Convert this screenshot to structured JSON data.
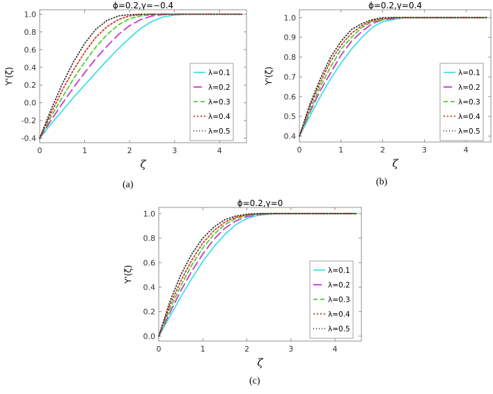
{
  "colors": {
    "l1": "#40e0e0",
    "l2": "#cc33cc",
    "l3": "#4ccc33",
    "l4": "#cc3322",
    "l5": "#333333"
  },
  "chart_data": [
    {
      "type": "line",
      "panel": "a",
      "title": "ϕ=0.2,γ=−0.4",
      "caption": "(a)",
      "xlabel": "ζ",
      "ylabel": "Y'(ζ)",
      "xlim": [
        0,
        4.6
      ],
      "ylim": [
        -0.45,
        1.05
      ],
      "xticks": [
        "0",
        "1",
        "2",
        "3",
        "4"
      ],
      "yticks": [
        "-0.4",
        "-0.2",
        "0.0",
        "0.2",
        "0.4",
        "0.6",
        "0.8",
        "1.0"
      ],
      "legend_position": "right",
      "x": [
        0,
        0.25,
        0.5,
        0.75,
        1,
        1.25,
        1.5,
        1.75,
        2,
        2.25,
        2.5,
        2.75,
        3,
        3.25,
        3.5,
        3.75,
        4,
        4.25,
        4.5
      ],
      "series": [
        {
          "name": "λ=0.1",
          "style": "solid",
          "values": [
            -0.4,
            -0.24,
            -0.09,
            0.06,
            0.2,
            0.34,
            0.48,
            0.61,
            0.73,
            0.84,
            0.92,
            0.97,
            0.99,
            1.0,
            1.0,
            1.0,
            1.0,
            1.0,
            1.0
          ]
        },
        {
          "name": "λ=0.2",
          "style": "dashlong",
          "values": [
            -0.4,
            -0.2,
            -0.01,
            0.17,
            0.34,
            0.5,
            0.64,
            0.77,
            0.87,
            0.94,
            0.98,
            0.995,
            1.0,
            1.0,
            1.0,
            1.0,
            1.0,
            1.0,
            1.0
          ]
        },
        {
          "name": "λ=0.3",
          "style": "dash",
          "values": [
            -0.4,
            -0.16,
            0.06,
            0.27,
            0.46,
            0.63,
            0.77,
            0.88,
            0.95,
            0.98,
            0.995,
            1.0,
            1.0,
            1.0,
            1.0,
            1.0,
            1.0,
            1.0,
            1.0
          ]
        },
        {
          "name": "λ=0.4",
          "style": "dotdash",
          "values": [
            -0.4,
            -0.12,
            0.14,
            0.37,
            0.57,
            0.74,
            0.86,
            0.94,
            0.98,
            0.995,
            1.0,
            1.0,
            1.0,
            1.0,
            1.0,
            1.0,
            1.0,
            1.0,
            1.0
          ]
        },
        {
          "name": "λ=0.5",
          "style": "dot",
          "values": [
            -0.4,
            -0.08,
            0.21,
            0.46,
            0.67,
            0.83,
            0.93,
            0.98,
            0.995,
            1.0,
            1.0,
            1.0,
            1.0,
            1.0,
            1.0,
            1.0,
            1.0,
            1.0,
            1.0
          ]
        }
      ]
    },
    {
      "type": "line",
      "panel": "b",
      "title": "ϕ=0.2,γ=0.4",
      "caption": "(b)",
      "xlabel": "ζ",
      "ylabel": "Y'(ζ)",
      "xlim": [
        0,
        4.6
      ],
      "ylim": [
        0.37,
        1.04
      ],
      "xticks": [
        "0",
        "1",
        "2",
        "3",
        "4"
      ],
      "yticks": [
        "0.4",
        "0.5",
        "0.6",
        "0.7",
        "0.8",
        "0.9",
        "1.0"
      ],
      "legend_position": "right",
      "x": [
        0,
        0.25,
        0.5,
        0.75,
        1,
        1.25,
        1.5,
        1.75,
        2,
        2.25,
        2.5,
        2.75,
        3,
        3.25,
        3.5,
        3.75,
        4,
        4.25,
        4.5
      ],
      "series": [
        {
          "name": "λ=0.1",
          "style": "solid",
          "values": [
            0.4,
            0.5,
            0.6,
            0.69,
            0.77,
            0.84,
            0.9,
            0.95,
            0.98,
            0.99,
            1.0,
            1.0,
            1.0,
            1.0,
            1.0,
            1.0,
            1.0,
            1.0,
            1.0
          ]
        },
        {
          "name": "λ=0.2",
          "style": "dashlong",
          "values": [
            0.4,
            0.52,
            0.63,
            0.72,
            0.81,
            0.88,
            0.93,
            0.97,
            0.99,
            0.995,
            1.0,
            1.0,
            1.0,
            1.0,
            1.0,
            1.0,
            1.0,
            1.0,
            1.0
          ]
        },
        {
          "name": "λ=0.3",
          "style": "dash",
          "values": [
            0.4,
            0.53,
            0.65,
            0.75,
            0.84,
            0.9,
            0.95,
            0.98,
            0.99,
            1.0,
            1.0,
            1.0,
            1.0,
            1.0,
            1.0,
            1.0,
            1.0,
            1.0,
            1.0
          ]
        },
        {
          "name": "λ=0.4",
          "style": "dotdash",
          "values": [
            0.4,
            0.55,
            0.67,
            0.78,
            0.86,
            0.92,
            0.96,
            0.985,
            0.995,
            1.0,
            1.0,
            1.0,
            1.0,
            1.0,
            1.0,
            1.0,
            1.0,
            1.0,
            1.0
          ]
        },
        {
          "name": "λ=0.5",
          "style": "dot",
          "values": [
            0.4,
            0.56,
            0.69,
            0.8,
            0.88,
            0.94,
            0.97,
            0.99,
            1.0,
            1.0,
            1.0,
            1.0,
            1.0,
            1.0,
            1.0,
            1.0,
            1.0,
            1.0,
            1.0
          ]
        }
      ]
    },
    {
      "type": "line",
      "panel": "c",
      "title": "ϕ=0.2,γ=0",
      "caption": "(c)",
      "xlabel": "ζ",
      "ylabel": "Y'(ζ)",
      "xlim": [
        0,
        4.6
      ],
      "ylim": [
        -0.04,
        1.05
      ],
      "xticks": [
        "0",
        "1",
        "2",
        "3",
        "4"
      ],
      "yticks": [
        "0.0",
        "0.2",
        "0.4",
        "0.6",
        "0.8",
        "1.0"
      ],
      "legend_position": "right",
      "x": [
        0,
        0.25,
        0.5,
        0.75,
        1,
        1.25,
        1.5,
        1.75,
        2,
        2.25,
        2.5,
        2.75,
        3,
        3.25,
        3.5,
        3.75,
        4,
        4.25,
        4.5
      ],
      "series": [
        {
          "name": "λ=0.1",
          "style": "solid",
          "values": [
            0,
            0.16,
            0.32,
            0.47,
            0.61,
            0.73,
            0.83,
            0.91,
            0.96,
            0.985,
            0.995,
            1.0,
            1.0,
            1.0,
            1.0,
            1.0,
            1.0,
            1.0,
            1.0
          ]
        },
        {
          "name": "λ=0.2",
          "style": "dashlong",
          "values": [
            0,
            0.19,
            0.37,
            0.53,
            0.67,
            0.79,
            0.88,
            0.94,
            0.975,
            0.99,
            1.0,
            1.0,
            1.0,
            1.0,
            1.0,
            1.0,
            1.0,
            1.0,
            1.0
          ]
        },
        {
          "name": "λ=0.3",
          "style": "dash",
          "values": [
            0,
            0.22,
            0.41,
            0.58,
            0.72,
            0.83,
            0.91,
            0.96,
            0.985,
            0.995,
            1.0,
            1.0,
            1.0,
            1.0,
            1.0,
            1.0,
            1.0,
            1.0,
            1.0
          ]
        },
        {
          "name": "λ=0.4",
          "style": "dotdash",
          "values": [
            0,
            0.25,
            0.45,
            0.62,
            0.76,
            0.86,
            0.93,
            0.97,
            0.99,
            1.0,
            1.0,
            1.0,
            1.0,
            1.0,
            1.0,
            1.0,
            1.0,
            1.0,
            1.0
          ]
        },
        {
          "name": "λ=0.5",
          "style": "dot",
          "values": [
            0,
            0.28,
            0.5,
            0.67,
            0.8,
            0.89,
            0.95,
            0.98,
            0.995,
            1.0,
            1.0,
            1.0,
            1.0,
            1.0,
            1.0,
            1.0,
            1.0,
            1.0,
            1.0
          ]
        }
      ]
    }
  ]
}
